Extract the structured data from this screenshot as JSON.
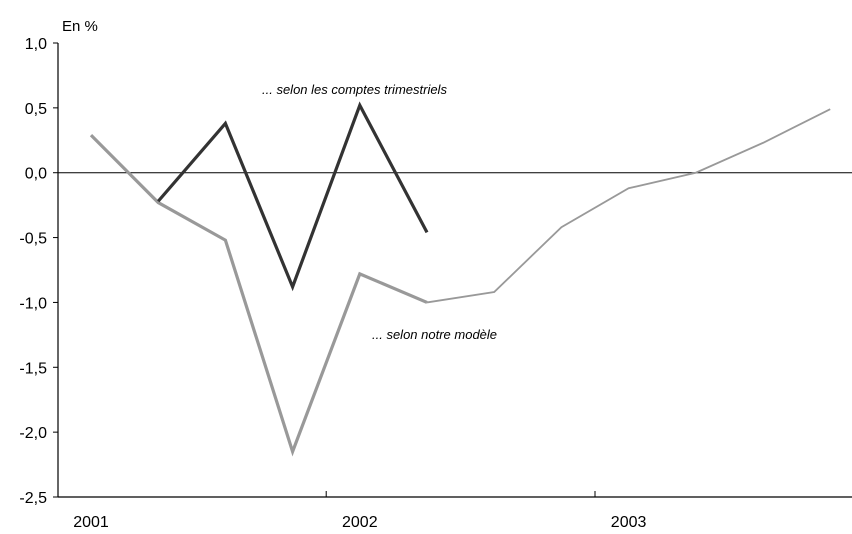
{
  "chart_data": {
    "type": "line",
    "unit_label": "En %",
    "ylim": [
      -2.5,
      1.0
    ],
    "y_ticks": [
      "1,0",
      "0,5",
      "0,0",
      "-0,5",
      "-1,0",
      "-1,5",
      "-2,0",
      "-2,5"
    ],
    "y_tick_values": [
      1.0,
      0.5,
      0.0,
      -0.5,
      -1.0,
      -1.5,
      -2.0,
      -2.5
    ],
    "x_tick_labels": [
      "2001",
      "2002",
      "2003"
    ],
    "grid": false,
    "reference_line": 0.0,
    "series": [
      {
        "name": "... selon les comptes trimestriels",
        "color": "#333333",
        "points": [
          {
            "x": "2001 T2",
            "y": -0.22
          },
          {
            "x": "2001 T3",
            "y": 0.38
          },
          {
            "x": "2001 T4",
            "y": -0.88
          },
          {
            "x": "2002 T1",
            "y": 0.52
          },
          {
            "x": "2002 T2",
            "y": -0.46
          }
        ]
      },
      {
        "name": "... selon notre modèle",
        "color": "#999999",
        "points": [
          {
            "x": "2001 T1",
            "y": 0.29
          },
          {
            "x": "2001 T2",
            "y": -0.23
          },
          {
            "x": "2001 T3",
            "y": -0.52
          },
          {
            "x": "2001 T4",
            "y": -2.15
          },
          {
            "x": "2002 T1",
            "y": -0.78
          },
          {
            "x": "2002 T2",
            "y": -1.0
          },
          {
            "x": "2002 T3",
            "y": -0.92
          },
          {
            "x": "2002 T4",
            "y": -0.42
          },
          {
            "x": "2003 T1",
            "y": -0.12
          },
          {
            "x": "2003 T2",
            "y": 0.0
          },
          {
            "x": "2003 T3",
            "y": 0.23
          },
          {
            "x": "2003 T4",
            "y": 0.49
          }
        ]
      }
    ]
  }
}
